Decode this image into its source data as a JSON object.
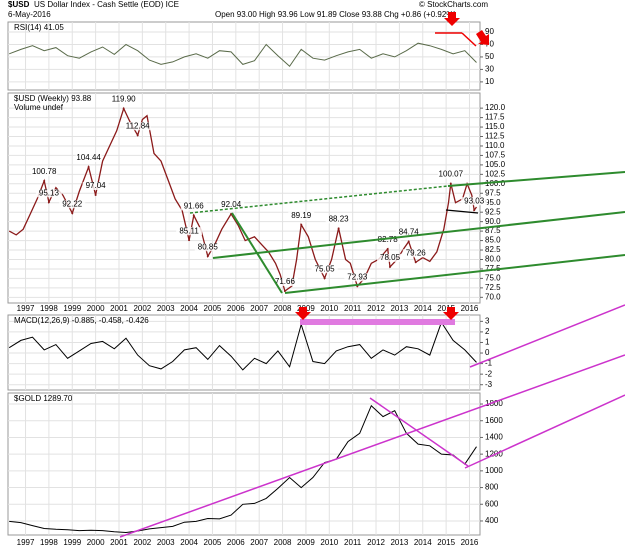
{
  "header": {
    "symbol": "$USD",
    "name": "US Dollar Index - Cash Settle (EOD) ICE",
    "date": "6-May-2016",
    "quote": "Open 93.00 High 93.96 Low 91.89 Close 93.88 Chg +0.86 (+0.92%)",
    "credit": "© StockCharts.com"
  },
  "chart_data": [
    {
      "type": "line",
      "title": "RSI(14) 41.05",
      "color": "#5a6b4a",
      "grid": true,
      "xlim": [
        1996.25,
        2016.45
      ],
      "ylim": [
        -3,
        106
      ],
      "yticks": [
        90,
        70,
        50,
        30,
        10
      ],
      "x": [
        1996.3,
        1996.8,
        1997.3,
        1997.8,
        1998.3,
        1998.8,
        1999.3,
        1999.8,
        2000.3,
        2000.8,
        2001.3,
        2001.8,
        2002.3,
        2002.8,
        2003.3,
        2003.8,
        2004.3,
        2004.8,
        2005.3,
        2005.8,
        2006.3,
        2006.8,
        2007.3,
        2007.8,
        2008.3,
        2008.8,
        2009.3,
        2009.8,
        2010.3,
        2010.8,
        2011.3,
        2011.8,
        2012.3,
        2012.8,
        2013.3,
        2013.8,
        2014.3,
        2014.8,
        2015.3,
        2015.8,
        2016.3
      ],
      "values": [
        55,
        62,
        68,
        60,
        65,
        52,
        48,
        58,
        66,
        54,
        70,
        60,
        45,
        38,
        42,
        50,
        55,
        48,
        60,
        58,
        38,
        44,
        70,
        52,
        35,
        62,
        48,
        45,
        52,
        58,
        62,
        48,
        55,
        50,
        60,
        72,
        68,
        62,
        55,
        60,
        41.05
      ]
    },
    {
      "type": "line",
      "title": "$USD (Weekly) 93.88",
      "legend": "Volume undef",
      "color": "#8b1a1a",
      "grid": true,
      "xlim": [
        1996.25,
        2016.45
      ],
      "ylim": [
        68.5,
        124
      ],
      "xticks": [
        1997,
        1998,
        1999,
        2000,
        2001,
        2002,
        2003,
        2004,
        2005,
        2006,
        2007,
        2008,
        2009,
        2010,
        2011,
        2012,
        2013,
        2014,
        2015,
        2016
      ],
      "yticks": [
        {
          "value": 120,
          "label": "120.0"
        },
        117.5,
        {
          "value": 115,
          "label": "115.0"
        },
        112.5,
        {
          "value": 110,
          "label": "110.0"
        },
        107.5,
        {
          "value": 105,
          "label": "105.0"
        },
        102.5,
        {
          "value": 100,
          "label": "100.0"
        },
        97.5,
        {
          "value": 95,
          "label": "95.0"
        },
        92.5,
        {
          "value": 90,
          "label": "90.0"
        },
        87.5,
        {
          "value": 85,
          "label": "85.0"
        },
        82.5,
        {
          "value": 80,
          "label": "80.0"
        },
        77.5,
        {
          "value": 75,
          "label": "75.0"
        },
        72.5,
        {
          "value": 70,
          "label": "70.0"
        }
      ],
      "x": [
        1996.3,
        1996.6,
        1996.9,
        1997.2,
        1997.5,
        1997.8,
        1998.0,
        1998.3,
        1998.6,
        1999.0,
        1999.3,
        1999.7,
        2000.0,
        2000.3,
        2000.6,
        2000.9,
        2001.2,
        2001.5,
        2001.8,
        2002.0,
        2002.2,
        2002.5,
        2002.8,
        2003.1,
        2003.4,
        2003.7,
        2004.0,
        2004.2,
        2004.5,
        2004.8,
        2005.1,
        2005.4,
        2005.8,
        2006.1,
        2006.4,
        2006.8,
        2007.1,
        2007.4,
        2007.7,
        2007.9,
        2008.1,
        2008.4,
        2008.6,
        2008.8,
        2009.1,
        2009.4,
        2009.8,
        2010.1,
        2010.4,
        2010.7,
        2010.9,
        2011.2,
        2011.5,
        2011.8,
        2012.1,
        2012.5,
        2012.6,
        2012.9,
        2013.2,
        2013.4,
        2013.7,
        2014.0,
        2014.3,
        2014.6,
        2014.9,
        2015.1,
        2015.2,
        2015.4,
        2015.7,
        2015.9,
        2016.1,
        2016.2,
        2016.3
      ],
      "values": [
        87.5,
        86.5,
        88,
        92,
        96,
        100.78,
        95.13,
        99,
        97,
        92.22,
        98,
        104.44,
        97.04,
        106,
        110,
        114,
        119.9,
        116,
        112.84,
        117,
        118,
        108,
        106,
        101,
        96,
        93,
        85.11,
        91.66,
        88,
        80.85,
        84,
        88,
        92.04,
        89,
        85,
        86,
        84,
        82,
        79,
        76,
        71.66,
        73,
        80,
        89.19,
        86,
        80,
        75.05,
        80,
        88.23,
        80,
        79,
        72.93,
        75,
        79,
        80,
        82.78,
        78.05,
        80,
        83,
        84.74,
        79.26,
        80.5,
        79.5,
        82,
        88,
        95,
        100.07,
        95,
        96,
        100,
        97,
        93.03,
        93.88
      ],
      "annotations": [
        {
          "x": 1997.8,
          "value": 100.78,
          "label": "100.78"
        },
        {
          "x": 1998.0,
          "value": 95.13,
          "label": "95.13"
        },
        {
          "x": 1999.0,
          "value": 92.22,
          "label": "92.22"
        },
        {
          "x": 1999.7,
          "value": 104.44,
          "label": "104.44"
        },
        {
          "x": 2000.0,
          "value": 97.04,
          "label": "97.04"
        },
        {
          "x": 2001.2,
          "value": 119.9,
          "label": "119.90"
        },
        {
          "x": 2001.8,
          "value": 112.84,
          "label": "112.84"
        },
        {
          "x": 2004.0,
          "value": 85.11,
          "label": "85.11"
        },
        {
          "x": 2004.2,
          "value": 91.66,
          "label": "91.66"
        },
        {
          "x": 2004.8,
          "value": 80.85,
          "label": "80.85"
        },
        {
          "x": 2005.8,
          "value": 92.04,
          "label": "92.04"
        },
        {
          "x": 2008.1,
          "value": 71.66,
          "label": "71.66"
        },
        {
          "x": 2008.8,
          "value": 89.19,
          "label": "89.19"
        },
        {
          "x": 2009.8,
          "value": 75.05,
          "label": "75.05"
        },
        {
          "x": 2010.4,
          "value": 88.23,
          "label": "88.23"
        },
        {
          "x": 2011.2,
          "value": 72.93,
          "label": "72.93"
        },
        {
          "x": 2012.5,
          "value": 82.78,
          "label": "82.78"
        },
        {
          "x": 2012.6,
          "value": 78.05,
          "label": "78.05"
        },
        {
          "x": 2013.4,
          "value": 84.74,
          "label": "84.74"
        },
        {
          "x": 2013.7,
          "value": 79.26,
          "label": "79.26"
        },
        {
          "x": 2015.2,
          "value": 100.07,
          "label": "100.07"
        },
        {
          "x": 2016.2,
          "value": 93.03,
          "label": "93.03"
        }
      ]
    },
    {
      "type": "line",
      "title": "MACD(12,26,9) -0.885, -0.458, -0.426",
      "color": "#000000",
      "grid": true,
      "xlim": [
        1996.25,
        2016.45
      ],
      "ylim": [
        -3.5,
        3.6
      ],
      "yticks": [
        3,
        2,
        1,
        0,
        -1,
        -2,
        -3
      ],
      "x": [
        1996.3,
        1996.8,
        1997.3,
        1997.8,
        1998.3,
        1998.8,
        1999.3,
        1999.8,
        2000.3,
        2000.8,
        2001.3,
        2001.8,
        2002.3,
        2002.8,
        2003.3,
        2003.8,
        2004.3,
        2004.8,
        2005.3,
        2005.8,
        2006.3,
        2006.8,
        2007.3,
        2007.8,
        2008.3,
        2008.8,
        2009.3,
        2009.8,
        2010.3,
        2010.8,
        2011.3,
        2011.8,
        2012.3,
        2012.8,
        2013.3,
        2013.8,
        2014.3,
        2014.8,
        2015.3,
        2015.8,
        2016.3
      ],
      "values": [
        0.5,
        1.2,
        1.5,
        0.3,
        0.8,
        -0.5,
        0.2,
        0.9,
        1.1,
        0.4,
        1.4,
        -0.2,
        -1.2,
        -1.5,
        -0.8,
        0.3,
        0.5,
        -0.6,
        0.7,
        -0.3,
        -1.6,
        -0.5,
        -1.0,
        0.2,
        -1.3,
        2.7,
        -0.8,
        -1,
        0.2,
        0.6,
        0.8,
        -0.5,
        0.3,
        -0.2,
        0.6,
        0.4,
        -0.2,
        2.9,
        1.2,
        0.3,
        -0.885
      ]
    },
    {
      "type": "line",
      "title": "$GOLD 1289.70",
      "color": "#000000",
      "grid": true,
      "xlim": [
        1996.25,
        2016.45
      ],
      "ylim": [
        232,
        1932
      ],
      "yticks": [
        1800,
        1600,
        1400,
        1200,
        1000,
        800,
        600,
        400
      ],
      "x": [
        1996.3,
        1996.8,
        1997.3,
        1997.8,
        1998.3,
        1998.8,
        1999.3,
        1999.8,
        2000.3,
        2000.8,
        2001.3,
        2001.8,
        2002.3,
        2002.8,
        2003.3,
        2003.8,
        2004.3,
        2004.8,
        2005.3,
        2005.8,
        2006.3,
        2006.8,
        2007.3,
        2007.8,
        2008.3,
        2008.8,
        2009.3,
        2009.8,
        2010.3,
        2010.8,
        2011.3,
        2011.8,
        2012.3,
        2012.8,
        2013.3,
        2013.8,
        2014.3,
        2014.8,
        2015.3,
        2015.8,
        2016.3
      ],
      "values": [
        395,
        380,
        345,
        310,
        300,
        295,
        285,
        290,
        285,
        270,
        262,
        280,
        305,
        320,
        335,
        385,
        395,
        430,
        425,
        470,
        600,
        610,
        670,
        790,
        920,
        800,
        920,
        1100,
        1140,
        1350,
        1450,
        1780,
        1650,
        1720,
        1450,
        1320,
        1300,
        1200,
        1190,
        1080,
        1289.7
      ]
    }
  ]
}
